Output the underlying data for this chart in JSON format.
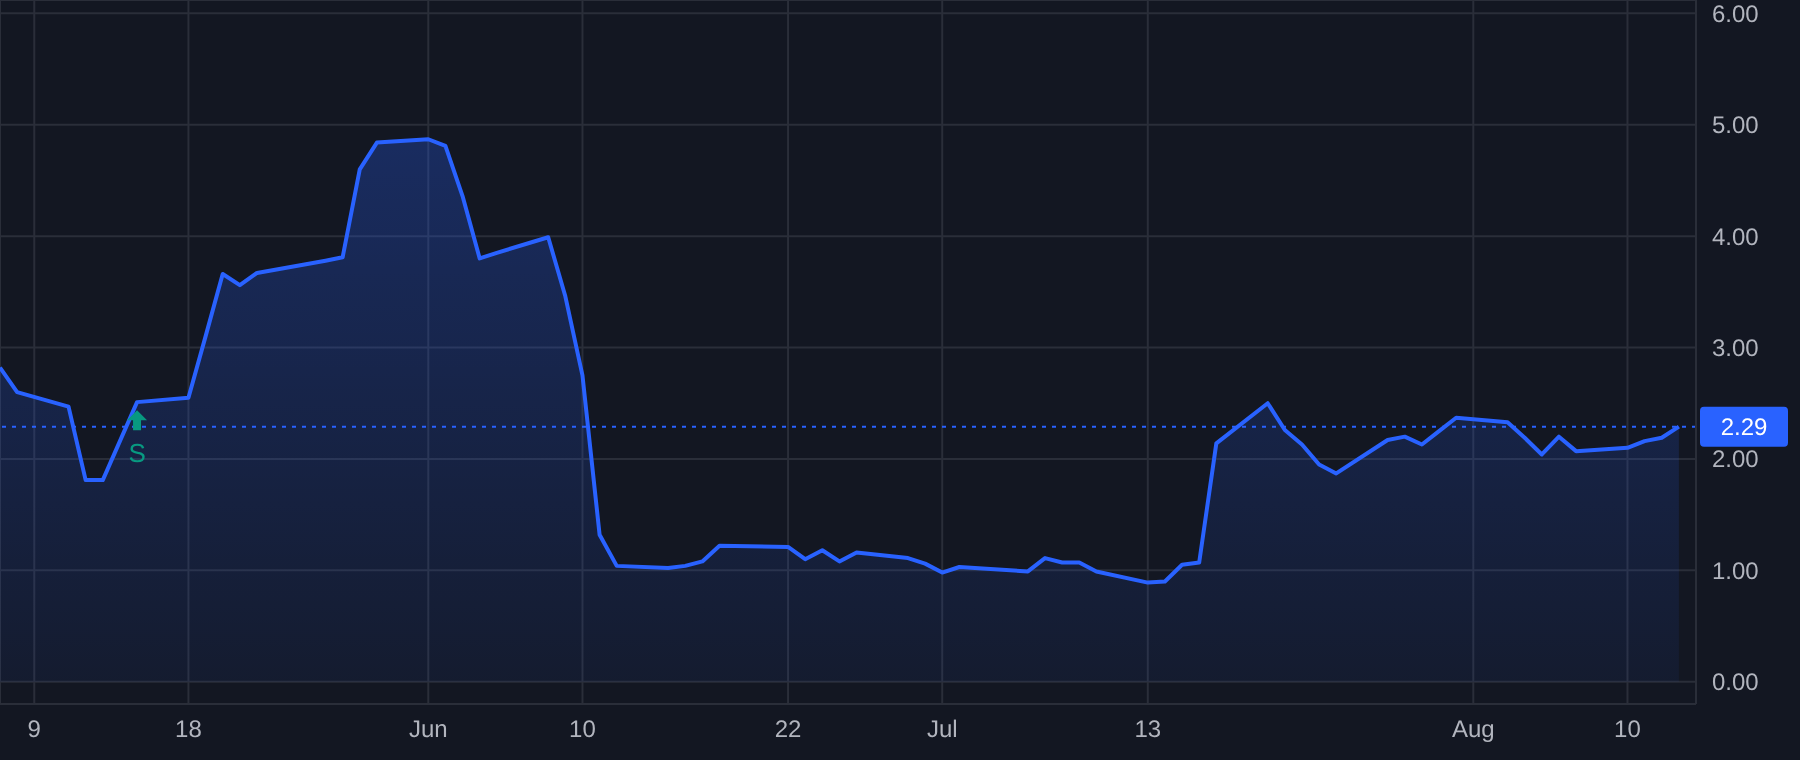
{
  "chart_data": {
    "type": "area",
    "x": [
      "--05-07",
      "--05-08",
      "--05-11",
      "--05-12",
      "--05-13",
      "--05-14",
      "--05-15",
      "--05-18",
      "--05-19",
      "--05-20",
      "--05-21",
      "--05-22",
      "--05-26",
      "--05-27",
      "--05-28",
      "--05-29",
      "--06-01",
      "--06-02",
      "--06-03",
      "--06-04",
      "--06-05",
      "--06-08",
      "--06-09",
      "--06-10",
      "--06-11",
      "--06-12",
      "--06-15",
      "--06-16",
      "--06-17",
      "--06-18",
      "--06-22",
      "--06-23",
      "--06-24",
      "--06-25",
      "--06-26",
      "--06-29",
      "--06-30",
      "--07-01",
      "--07-02",
      "--07-06",
      "--07-07",
      "--07-08",
      "--07-09",
      "--07-10",
      "--07-13",
      "--07-14",
      "--07-15",
      "--07-16",
      "--07-17",
      "--07-20",
      "--07-21",
      "--07-22",
      "--07-23",
      "--07-24",
      "--07-27",
      "--07-28",
      "--07-29",
      "--07-30",
      "--07-31",
      "--08-03",
      "--08-04",
      "--08-05",
      "--08-06",
      "--08-07",
      "--08-10",
      "--08-11",
      "--08-12",
      "--08-13"
    ],
    "series": [
      {
        "color": "#2962ff",
        "values": [
          2.82,
          2.6,
          2.47,
          1.81,
          1.81,
          2.16,
          2.51,
          2.55,
          3.1,
          3.66,
          3.56,
          3.67,
          3.78,
          3.81,
          4.6,
          4.84,
          4.87,
          4.81,
          4.36,
          3.8,
          3.85,
          3.99,
          3.46,
          2.75,
          1.32,
          1.04,
          1.02,
          1.04,
          1.08,
          1.22,
          1.21,
          1.1,
          1.18,
          1.08,
          1.16,
          1.11,
          1.06,
          0.98,
          1.03,
          0.99,
          1.11,
          1.07,
          1.07,
          0.99,
          0.89,
          0.9,
          1.05,
          1.07,
          2.14,
          2.5,
          2.26,
          2.13,
          1.95,
          1.87,
          2.17,
          2.2,
          2.13,
          2.25,
          2.37,
          2.33,
          2.19,
          2.04,
          2.2,
          2.07,
          2.1,
          2.16,
          2.19,
          2.29
        ]
      }
    ],
    "xlim": [
      "--05-07",
      "--08-14"
    ],
    "xticks": [
      {
        "value": "--05-09",
        "label": "9"
      },
      {
        "value": "--05-18",
        "label": "18"
      },
      {
        "value": "--06-01",
        "label": "Jun"
      },
      {
        "value": "--06-10",
        "label": "10"
      },
      {
        "value": "--06-22",
        "label": "22"
      },
      {
        "value": "--07-01",
        "label": "Jul"
      },
      {
        "value": "--07-13",
        "label": "13"
      },
      {
        "value": "--08-01",
        "label": "Aug"
      },
      {
        "value": "--08-10",
        "label": "10"
      }
    ],
    "ylim": [
      -0.2,
      6.12
    ],
    "yticks": [
      {
        "value": 0,
        "label": "0.00"
      },
      {
        "value": 1,
        "label": "1.00"
      },
      {
        "value": 2,
        "label": "2.00"
      },
      {
        "value": 3,
        "label": "3.00"
      },
      {
        "value": 4,
        "label": "4.00"
      },
      {
        "value": 5,
        "label": "5.00"
      },
      {
        "value": 6,
        "label": "6.00"
      }
    ],
    "grid": true,
    "line_style": "solid",
    "ref_lines": [
      {
        "axis": "y",
        "value": 2.29,
        "label": "2.29",
        "color": "#2962ff",
        "line_style": "dotted"
      }
    ],
    "annotations": [
      {
        "text": "S",
        "x": "--05-15",
        "y": 2.51
      }
    ]
  }
}
